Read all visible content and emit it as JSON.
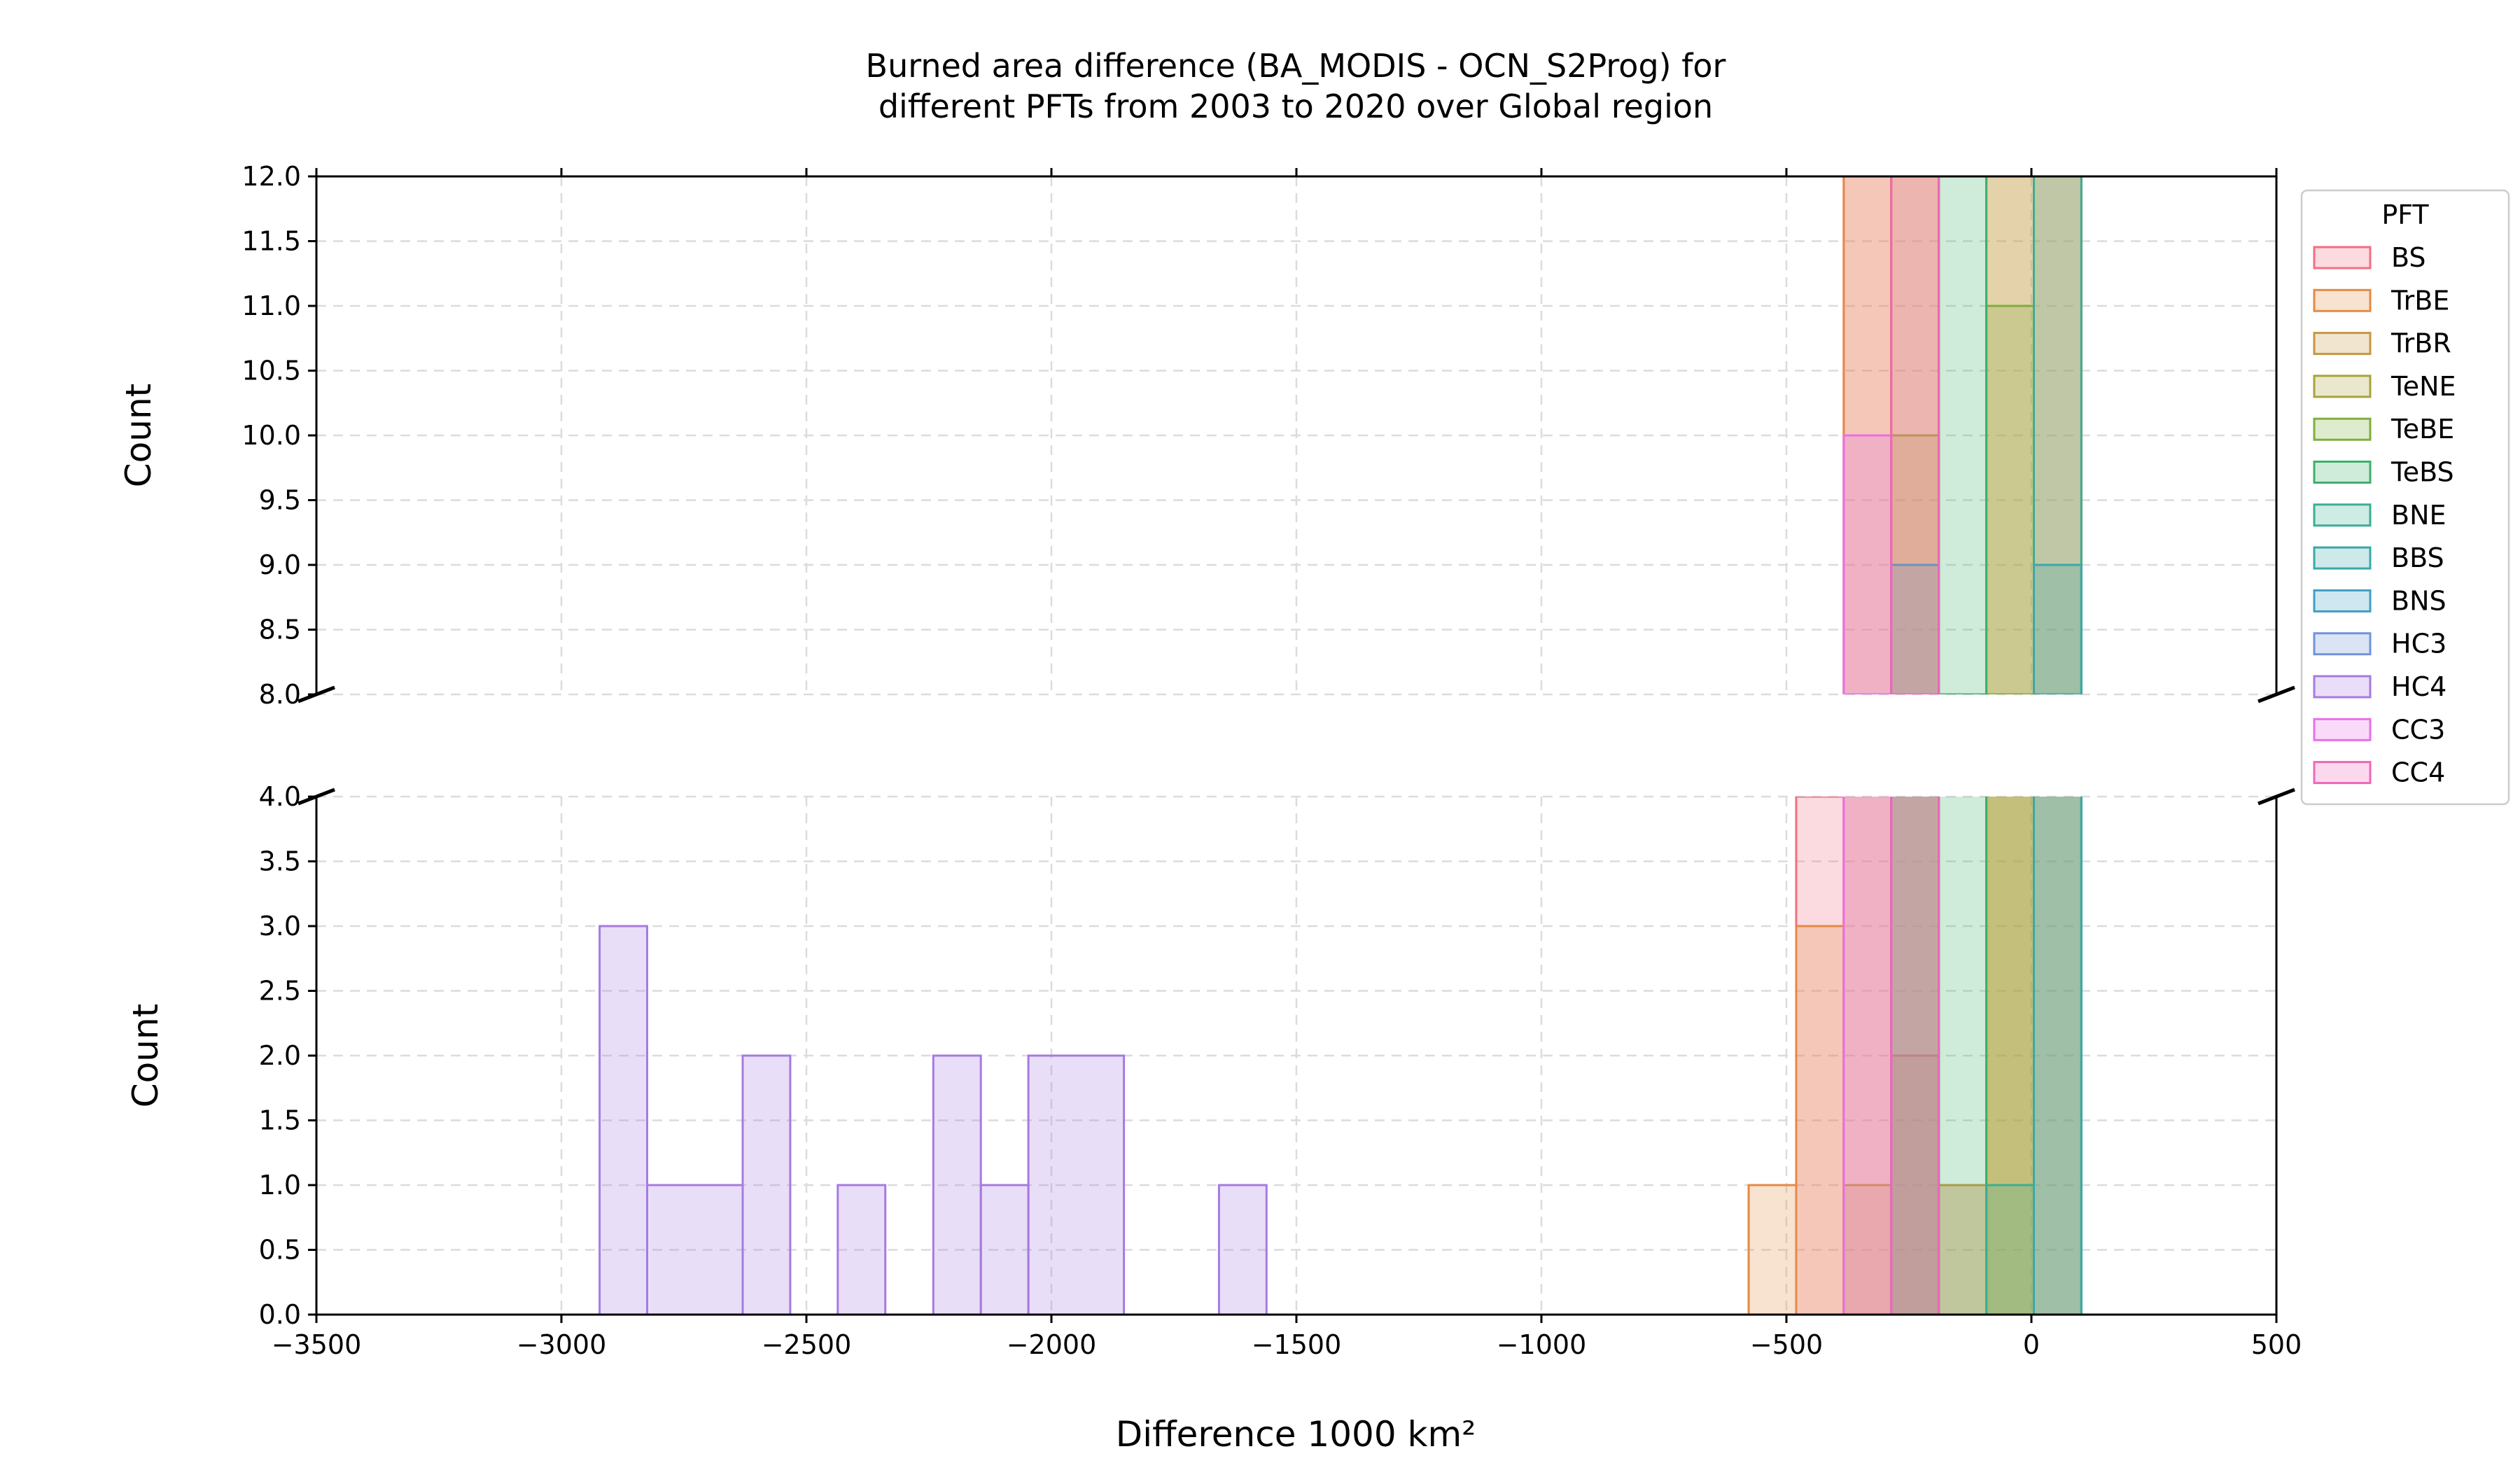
{
  "chart_data": {
    "type": "histogram",
    "title": "Burned area difference (BA_MODIS - OCN_S2Prog) for\ndifferent PFTs from 2003 to 2020 over Global region",
    "xlabel": "Difference 1000 km²",
    "ylabel": "Count",
    "xlim": [
      -3500,
      500
    ],
    "x_ticks": [
      -3500,
      -3000,
      -2500,
      -2000,
      -1500,
      -1000,
      -500,
      0,
      500
    ],
    "x_tick_labels": [
      "−3500",
      "−3000",
      "−2500",
      "−2000",
      "−1500",
      "−1000",
      "−500",
      "0",
      "500"
    ],
    "broken_y_axis": true,
    "top_panel": {
      "ylim": [
        8.0,
        12.0
      ],
      "y_ticks": [
        8.0,
        8.5,
        9.0,
        9.5,
        10.0,
        10.5,
        11.0,
        11.5,
        12.0
      ],
      "y_tick_labels": [
        "8.0",
        "8.5",
        "9.0",
        "9.5",
        "10.0",
        "10.5",
        "11.0",
        "11.5",
        "12.0"
      ]
    },
    "bottom_panel": {
      "ylim": [
        0.0,
        4.0
      ],
      "y_ticks": [
        0.0,
        0.5,
        1.0,
        1.5,
        2.0,
        2.5,
        3.0,
        3.5,
        4.0
      ],
      "y_tick_labels": [
        "0.0",
        "0.5",
        "1.0",
        "1.5",
        "2.0",
        "2.5",
        "3.0",
        "3.5",
        "4.0"
      ]
    },
    "grid": true,
    "legend": {
      "title": "PFT",
      "placement": "outside-right-top"
    },
    "series": [
      {
        "name": "BS",
        "color": "#f06f82",
        "bins": [
          [
            -480,
            -383,
            4
          ],
          [
            -383,
            -286,
            20
          ],
          [
            -286,
            -189,
            2
          ]
        ]
      },
      {
        "name": "TrBE",
        "color": "#e58a45",
        "bins": [
          [
            -577,
            -480,
            1
          ],
          [
            -480,
            -383,
            3
          ],
          [
            -383,
            -286,
            20
          ],
          [
            -286,
            -189,
            20
          ],
          [
            -189,
            -92,
            1
          ],
          [
            -92,
            5,
            20
          ],
          [
            5,
            102,
            20
          ]
        ]
      },
      {
        "name": "TrBR",
        "color": "#c9963f",
        "bins": [
          [
            -383,
            -286,
            1
          ],
          [
            -286,
            -189,
            20
          ],
          [
            -189,
            -92,
            1
          ],
          [
            -92,
            5,
            8
          ],
          [
            5,
            102,
            20
          ]
        ]
      },
      {
        "name": "TeNE",
        "color": "#a9a33a",
        "bins": [
          [
            -286,
            -189,
            10
          ],
          [
            -92,
            5,
            20
          ]
        ]
      },
      {
        "name": "TeBE",
        "color": "#7fae3b",
        "bins": [
          [
            -92,
            5,
            11
          ]
        ]
      },
      {
        "name": "TeBS",
        "color": "#3eb06b",
        "bins": [
          [
            -189,
            -92,
            20
          ]
        ]
      },
      {
        "name": "BNE",
        "color": "#3bae93",
        "bins": [
          [
            -92,
            5,
            1
          ],
          [
            5,
            102,
            20
          ]
        ]
      },
      {
        "name": "BBS",
        "color": "#3aa9a9",
        "bins": [
          [
            5,
            102,
            9
          ]
        ]
      },
      {
        "name": "BNS",
        "color": "#3f9fc3",
        "bins": [
          [
            -286,
            -189,
            9
          ]
        ]
      },
      {
        "name": "HC3",
        "color": "#6f95d8",
        "bins": []
      },
      {
        "name": "HC4",
        "color": "#a67be0",
        "bins": [
          [
            -2922,
            -2825,
            3
          ],
          [
            -2825,
            -2630,
            1
          ],
          [
            -2630,
            -2533,
            2
          ],
          [
            -2436,
            -2339,
            1
          ],
          [
            -2241,
            -2144,
            2
          ],
          [
            -2144,
            -2047,
            1
          ],
          [
            -2047,
            -1852,
            2
          ],
          [
            -1658,
            -1561,
            1
          ]
        ]
      },
      {
        "name": "CC3",
        "color": "#e86fe8",
        "bins": [
          [
            -383,
            -286,
            10
          ]
        ]
      },
      {
        "name": "CC4",
        "color": "#f066b8",
        "bins": [
          [
            -286,
            -189,
            20
          ]
        ]
      }
    ]
  }
}
